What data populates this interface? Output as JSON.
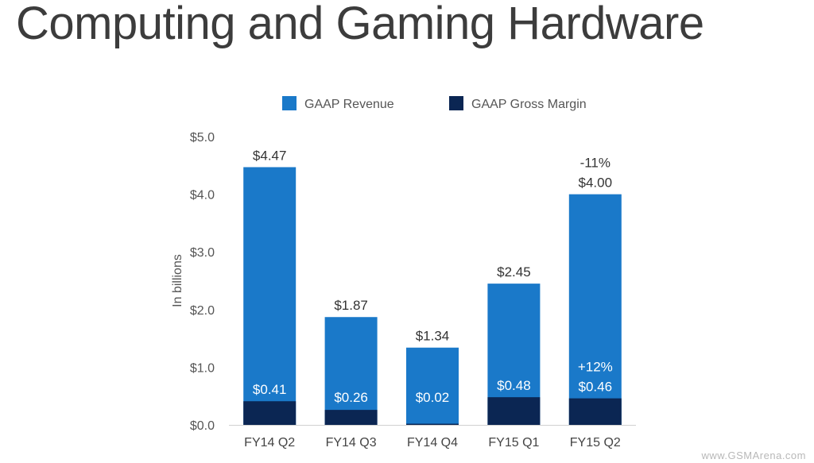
{
  "title": "Computing and Gaming Hardware",
  "watermark": "www.GSMArena.com",
  "chart_data": {
    "type": "bar",
    "title": "Computing and Gaming Hardware",
    "ylabel": "In billions",
    "xlabel": "",
    "ylim": [
      0,
      5
    ],
    "yticks": [
      0,
      1,
      2,
      3,
      4,
      5
    ],
    "ytick_labels": [
      "$0.0",
      "$1.0",
      "$2.0",
      "$3.0",
      "$4.0",
      "$5.0"
    ],
    "categories": [
      "FY14 Q2",
      "FY14 Q3",
      "FY14 Q4",
      "FY15 Q1",
      "FY15 Q2"
    ],
    "series": [
      {
        "name": "GAAP Revenue",
        "color": "#1a79c9",
        "values": [
          4.47,
          1.87,
          1.34,
          2.45,
          4.0
        ],
        "labels": [
          "$4.47",
          "$1.87",
          "$1.34",
          "$2.45",
          "$4.00"
        ]
      },
      {
        "name": "GAAP Gross Margin",
        "color": "#0b2653",
        "values": [
          0.41,
          0.26,
          0.02,
          0.48,
          0.46
        ],
        "labels": [
          "$0.41",
          "$0.26",
          "$0.02",
          "$0.48",
          "$0.46"
        ]
      }
    ],
    "annotations": [
      {
        "category": "FY15 Q2",
        "series": "GAAP Revenue",
        "text": "-11%"
      },
      {
        "category": "FY15 Q2",
        "series": "GAAP Gross Margin",
        "text": "+12%"
      }
    ],
    "legend_position": "top-center"
  }
}
